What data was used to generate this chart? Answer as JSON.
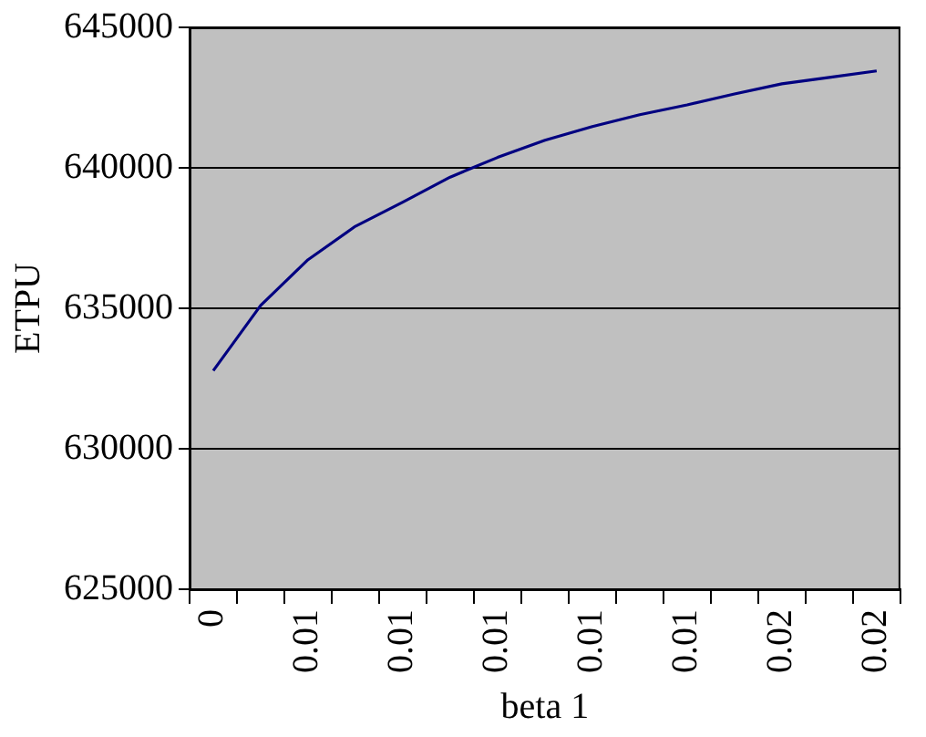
{
  "chart_data": {
    "type": "line",
    "xlabel": "beta 1",
    "ylabel": "ETPU",
    "categories": [
      "0",
      null,
      "0.01",
      null,
      "0.01",
      null,
      "0.01",
      null,
      "0.01",
      null,
      "0.01",
      null,
      "0.02",
      null,
      "0.02"
    ],
    "series": [
      {
        "color": "#000080",
        "values": [
          632780,
          635100,
          636730,
          637920,
          638780,
          639670,
          640370,
          640980,
          641470,
          641890,
          642240,
          642630,
          642990,
          643220,
          643450
        ]
      }
    ],
    "ylim": [
      625000,
      645000
    ],
    "yticks": [
      625000,
      630000,
      635000,
      640000,
      645000
    ],
    "grid": "y",
    "legend": false,
    "marker": "none",
    "line_style": "solid"
  }
}
